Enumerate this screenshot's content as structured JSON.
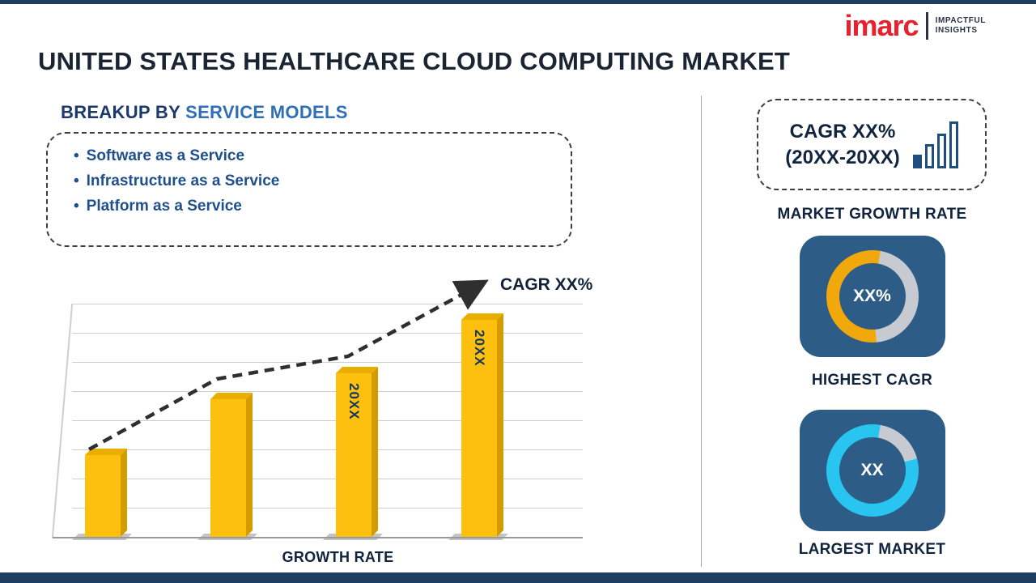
{
  "header": {
    "title": "UNITED STATES HEALTHCARE CLOUD COMPUTING MARKET"
  },
  "logo": {
    "brand": "imarc",
    "tagline_line1": "IMPACTFUL",
    "tagline_line2": "INSIGHTS"
  },
  "breakup": {
    "heading_prefix": "BREAKUP BY",
    "heading_highlight": "SERVICE MODELS",
    "items": [
      "Software as a Service",
      "Infrastructure as a Service",
      "Platform as a Service"
    ]
  },
  "chart_data": {
    "type": "bar",
    "categories": [
      "",
      "",
      "20XX",
      "20XX"
    ],
    "values": [
      35,
      59,
      70,
      93
    ],
    "value_note": "relative bar heights in % of plot height; no numeric axis labels shown",
    "title": "",
    "xlabel": "GROWTH RATE",
    "ylabel": "",
    "trend_annotation": "CAGR XX%",
    "grid": true,
    "legend": false,
    "bar_color": "#FEC00F"
  },
  "sidebar": {
    "growth": {
      "line1": "CAGR XX%",
      "line2": "(20XX-20XX)",
      "caption": "MARKET GROWTH RATE"
    },
    "highest": {
      "value": "XX%",
      "caption": "HIGHEST CAGR",
      "arc_color": "#F0A80B"
    },
    "largest": {
      "value": "XX",
      "caption": "LARGEST MARKET",
      "arc_color": "#29C5F1"
    }
  },
  "colors": {
    "accent_navy": "#1D3D63",
    "card_blue": "#2D5C86",
    "ring_gray": "#C7CBD1",
    "brand_red": "#E8212E"
  }
}
